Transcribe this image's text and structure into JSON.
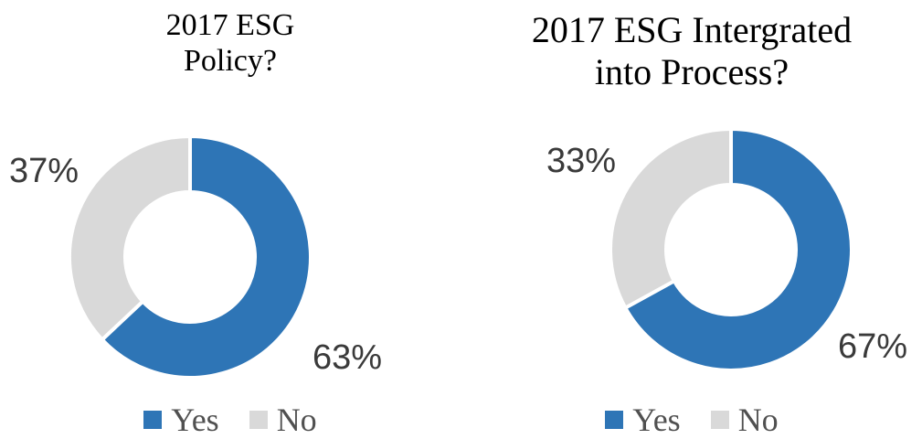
{
  "chart_data": [
    {
      "type": "pie",
      "title": "2017 ESG Policy?",
      "title_lines": [
        "2017 ESG",
        "Policy?"
      ],
      "donut": true,
      "categories": [
        "Yes",
        "No"
      ],
      "values": [
        63,
        37
      ],
      "labels": [
        "63%",
        "37%"
      ],
      "colors": [
        "#2e75b6",
        "#d9d9d9"
      ],
      "legend": "bottom"
    },
    {
      "type": "pie",
      "title": "2017 ESG Intergrated into Process?",
      "title_lines": [
        "2017 ESG Intergrated",
        "into Process?"
      ],
      "donut": true,
      "categories": [
        "Yes",
        "No"
      ],
      "values": [
        67,
        33
      ],
      "labels": [
        "67%",
        "33%"
      ],
      "colors": [
        "#2e75b6",
        "#d9d9d9"
      ],
      "legend": "bottom"
    }
  ]
}
